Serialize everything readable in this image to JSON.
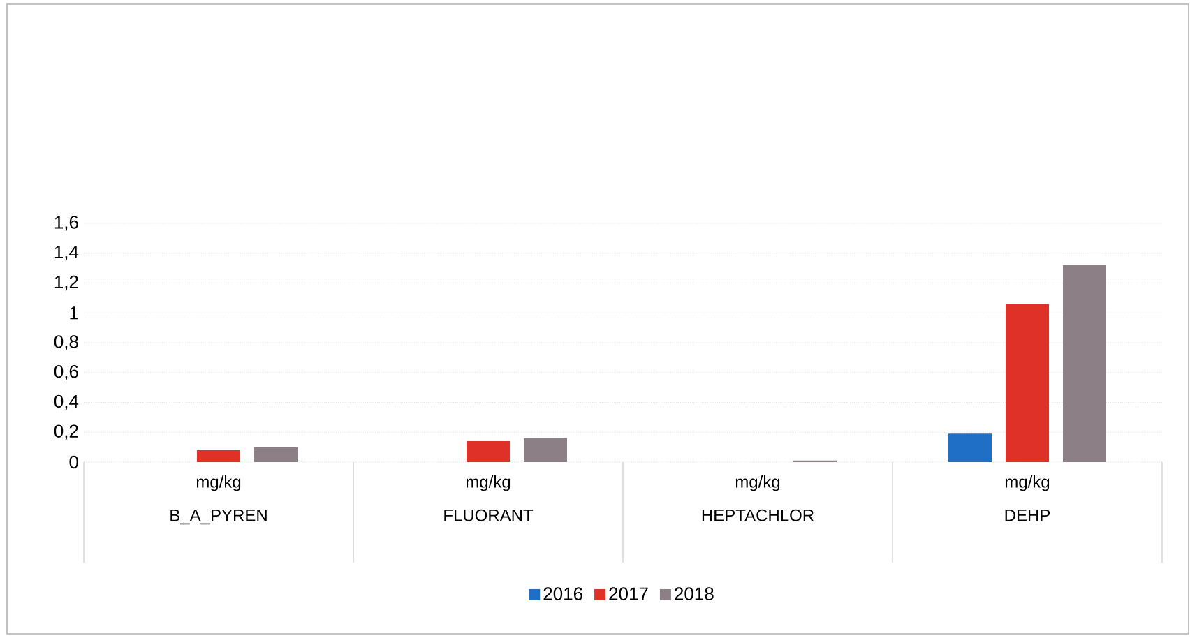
{
  "chart_data": {
    "type": "bar",
    "categories": [
      "B_A_PYREN",
      "FLUORANT",
      "HEPTACHLOR",
      "DEHP"
    ],
    "annotations": [
      "mg/kg",
      "mg/kg",
      "mg/kg",
      "mg/kg"
    ],
    "series": [
      {
        "name": "2016",
        "color": "#1f6fc6",
        "values": [
          0,
          0,
          0,
          0.19
        ]
      },
      {
        "name": "2017",
        "color": "#e03128",
        "values": [
          0.08,
          0.14,
          0,
          1.06
        ]
      },
      {
        "name": "2018",
        "color": "#8c8086",
        "values": [
          0.1,
          0.16,
          0.01,
          1.32
        ]
      }
    ],
    "ylim": [
      0,
      1.6
    ],
    "yticks": [
      0,
      {
        "value": 0.2,
        "label": "0,2"
      },
      {
        "value": 0.4,
        "label": "0,4"
      },
      {
        "value": 0.6,
        "label": "0,6"
      },
      {
        "value": 0.8,
        "label": "0,8"
      },
      1,
      {
        "value": 1.2,
        "label": "1,2"
      },
      {
        "value": 1.4,
        "label": "1,4"
      },
      {
        "value": 1.6,
        "label": "1,6"
      }
    ],
    "grid": "y",
    "legend": "bottom"
  }
}
